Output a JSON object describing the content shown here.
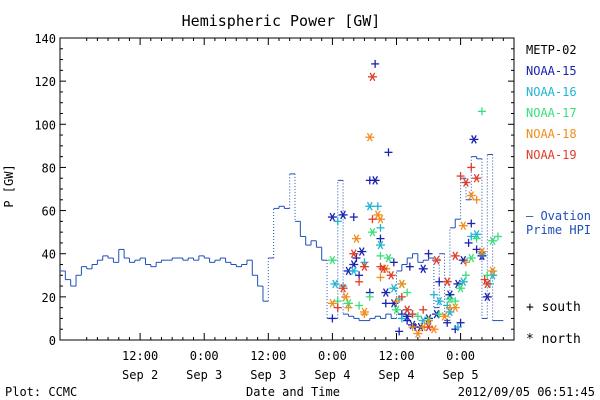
{
  "chart_data": {
    "type": "scatter",
    "title": "Hemispheric Power [GW]",
    "ylabel": "P [GW]",
    "xlabel": "Date and Time",
    "x_unit": "hours from 00:00 Sep 2",
    "xlim": [
      -3,
      82
    ],
    "ylim": [
      0,
      140
    ],
    "yticks": [
      0,
      20,
      40,
      60,
      80,
      100,
      120,
      140
    ],
    "xticks": [
      {
        "x": 12,
        "time": "12:00",
        "date": "Sep 2"
      },
      {
        "x": 24,
        "time": "0:00",
        "date": "Sep 3"
      },
      {
        "x": 36,
        "time": "12:00",
        "date": "Sep 3"
      },
      {
        "x": 48,
        "time": "0:00",
        "date": "Sep 4"
      },
      {
        "x": 60,
        "time": "12:00",
        "date": "Sep 4"
      },
      {
        "x": 72,
        "time": "0:00",
        "date": "Sep 5"
      }
    ],
    "footer_left": "Plot: CCMC",
    "footer_right": "2012/09/05 06:51:45",
    "symbol_legend": [
      {
        "symbol": "+",
        "label": "south"
      },
      {
        "symbol": "*",
        "label": "north"
      }
    ],
    "ovation": {
      "name_line1": "— Ovation",
      "name_line2": "Prime HPI",
      "color": "#1f4fb8",
      "points": [
        [
          -3,
          32
        ],
        [
          -2,
          28
        ],
        [
          -1,
          25
        ],
        [
          0,
          30
        ],
        [
          1,
          34
        ],
        [
          2,
          33
        ],
        [
          3,
          35
        ],
        [
          4,
          37
        ],
        [
          5,
          39
        ],
        [
          6,
          38
        ],
        [
          7,
          36
        ],
        [
          8,
          42
        ],
        [
          9,
          38
        ],
        [
          10,
          36
        ],
        [
          11,
          37
        ],
        [
          12,
          38
        ],
        [
          13,
          35
        ],
        [
          14,
          34
        ],
        [
          15,
          36
        ],
        [
          16,
          37
        ],
        [
          17,
          37
        ],
        [
          18,
          38
        ],
        [
          19,
          38
        ],
        [
          20,
          37
        ],
        [
          21,
          38
        ],
        [
          22,
          37
        ],
        [
          23,
          39
        ],
        [
          24,
          38
        ],
        [
          25,
          36
        ],
        [
          26,
          37
        ],
        [
          27,
          38
        ],
        [
          28,
          36
        ],
        [
          29,
          35
        ],
        [
          30,
          34
        ],
        [
          31,
          35
        ],
        [
          32,
          37
        ],
        [
          33,
          30
        ],
        [
          34,
          25
        ],
        [
          35,
          18
        ],
        [
          36,
          38
        ],
        [
          37,
          61
        ],
        [
          38,
          62
        ],
        [
          39,
          61
        ],
        [
          40,
          77
        ],
        [
          41,
          55
        ],
        [
          42,
          48
        ],
        [
          43,
          44
        ],
        [
          44,
          46
        ],
        [
          45,
          43
        ],
        [
          46,
          37
        ],
        [
          47,
          10
        ],
        [
          48,
          10
        ],
        [
          49,
          74
        ],
        [
          50,
          12
        ],
        [
          51,
          11
        ],
        [
          52,
          10
        ],
        [
          53,
          9
        ],
        [
          54,
          9
        ],
        [
          55,
          10
        ],
        [
          56,
          11
        ],
        [
          57,
          10
        ],
        [
          58,
          12
        ],
        [
          59,
          10
        ],
        [
          60,
          32
        ],
        [
          61,
          35
        ],
        [
          62,
          38
        ],
        [
          63,
          40
        ],
        [
          64,
          36
        ],
        [
          65,
          37
        ],
        [
          66,
          38
        ],
        [
          67,
          15
        ],
        [
          68,
          40
        ],
        [
          69,
          9
        ],
        [
          70,
          52
        ],
        [
          71,
          56
        ],
        [
          72,
          75
        ],
        [
          73,
          65
        ],
        [
          74,
          85
        ],
        [
          75,
          84
        ],
        [
          76,
          10
        ],
        [
          77,
          86
        ],
        [
          78,
          9
        ],
        [
          79,
          9
        ]
      ]
    },
    "series": [
      {
        "name": "METP-02",
        "color": "#000000",
        "south": [],
        "north": []
      },
      {
        "name": "NOAA-15",
        "color": "#1a23b0",
        "south": [
          [
            56,
            128
          ],
          [
            58.5,
            87
          ],
          [
            55,
            74
          ],
          [
            52,
            57
          ],
          [
            57,
            47
          ],
          [
            59.5,
            36
          ],
          [
            55,
            22
          ],
          [
            58,
            17
          ],
          [
            61,
            12
          ],
          [
            62,
            9
          ],
          [
            63.5,
            6
          ],
          [
            60.5,
            4
          ],
          [
            69.5,
            8
          ],
          [
            71,
            5
          ],
          [
            72,
            8
          ],
          [
            73.5,
            45
          ],
          [
            74,
            54
          ],
          [
            66,
            40
          ],
          [
            68,
            27
          ],
          [
            75,
            42
          ],
          [
            76,
            39
          ],
          [
            48,
            10
          ],
          [
            52.5,
            38
          ],
          [
            53,
            30
          ],
          [
            62.5,
            34
          ]
        ],
        "north": [
          [
            48,
            57
          ],
          [
            50,
            58
          ],
          [
            56,
            74
          ],
          [
            53.5,
            41
          ],
          [
            52,
            35
          ],
          [
            51,
            32
          ],
          [
            58,
            22
          ],
          [
            59.5,
            17
          ],
          [
            62,
            11
          ],
          [
            63,
            7
          ],
          [
            64.5,
            6
          ],
          [
            66,
            10
          ],
          [
            67.5,
            12
          ],
          [
            70,
            21
          ],
          [
            71.5,
            26
          ],
          [
            72.5,
            37
          ],
          [
            74.5,
            93
          ],
          [
            76,
            39
          ],
          [
            77,
            20
          ],
          [
            65,
            33
          ]
        ]
      },
      {
        "name": "NOAA-16",
        "color": "#20b4d4",
        "south": [
          [
            57,
            52
          ],
          [
            49,
            55
          ],
          [
            56.5,
            62
          ],
          [
            54,
            36
          ],
          [
            50,
            25
          ],
          [
            60.5,
            19
          ],
          [
            63,
            12
          ],
          [
            67,
            21
          ],
          [
            69.5,
            16
          ],
          [
            71.5,
            6
          ],
          [
            74,
            48
          ],
          [
            76,
            40
          ],
          [
            77.5,
            26
          ],
          [
            61,
            10
          ]
        ],
        "north": [
          [
            55,
            62
          ],
          [
            48.5,
            26
          ],
          [
            52,
            32
          ],
          [
            57,
            44
          ],
          [
            59.5,
            24
          ],
          [
            62,
            14
          ],
          [
            65,
            9
          ],
          [
            68,
            18
          ],
          [
            70,
            13
          ],
          [
            72.5,
            27
          ],
          [
            75,
            49
          ],
          [
            78,
            30
          ]
        ]
      },
      {
        "name": "NOAA-17",
        "color": "#38e07a",
        "south": [
          [
            76,
            106
          ],
          [
            49,
            18
          ],
          [
            53,
            16
          ],
          [
            57,
            39
          ],
          [
            62,
            22
          ],
          [
            64,
            11
          ],
          [
            68,
            12
          ],
          [
            71,
            18
          ],
          [
            73,
            30
          ],
          [
            75,
            47
          ],
          [
            77,
            30
          ],
          [
            79,
            48
          ],
          [
            55,
            20
          ]
        ],
        "north": [
          [
            48,
            37
          ],
          [
            51,
            17
          ],
          [
            55.5,
            50
          ],
          [
            58.5,
            38
          ],
          [
            61,
            26
          ],
          [
            66,
            9
          ],
          [
            70,
            19
          ],
          [
            72,
            24
          ],
          [
            74,
            38
          ],
          [
            78,
            46
          ],
          [
            60,
            14
          ]
        ]
      },
      {
        "name": "NOAA-18",
        "color": "#f28c1c",
        "south": [
          [
            51,
            15
          ],
          [
            54,
            12
          ],
          [
            57,
            29
          ],
          [
            60,
            18
          ],
          [
            63,
            6
          ],
          [
            66,
            9
          ],
          [
            70,
            15
          ],
          [
            73,
            36
          ],
          [
            75,
            65
          ]
        ],
        "north": [
          [
            55,
            94
          ],
          [
            56.5,
            58
          ],
          [
            48,
            17
          ],
          [
            50.5,
            20
          ],
          [
            52.5,
            47
          ],
          [
            54,
            13
          ],
          [
            58,
            33
          ],
          [
            61,
            26
          ],
          [
            64,
            3
          ],
          [
            65,
            6
          ],
          [
            67,
            5
          ],
          [
            69,
            11
          ],
          [
            71,
            15
          ],
          [
            72.5,
            53
          ],
          [
            74,
            67
          ],
          [
            76,
            41
          ],
          [
            78,
            32
          ],
          [
            57,
            56
          ]
        ]
      },
      {
        "name": "NOAA-19",
        "color": "#e03c28",
        "south": [
          [
            55.5,
            56
          ],
          [
            57,
            34
          ],
          [
            49,
            15
          ],
          [
            53,
            27
          ],
          [
            61,
            20
          ],
          [
            63,
            12
          ],
          [
            65,
            14
          ],
          [
            72,
            76
          ],
          [
            74,
            80
          ],
          [
            76.5,
            28
          ]
        ],
        "north": [
          [
            55.5,
            122
          ],
          [
            50,
            24
          ],
          [
            52,
            40
          ],
          [
            54,
            34
          ],
          [
            57.5,
            33
          ],
          [
            59,
            30
          ],
          [
            62,
            14
          ],
          [
            66,
            6
          ],
          [
            67.5,
            37
          ],
          [
            71,
            39
          ],
          [
            73,
            73
          ],
          [
            75,
            75
          ],
          [
            77,
            26
          ],
          [
            69.5,
            27
          ]
        ]
      }
    ]
  }
}
